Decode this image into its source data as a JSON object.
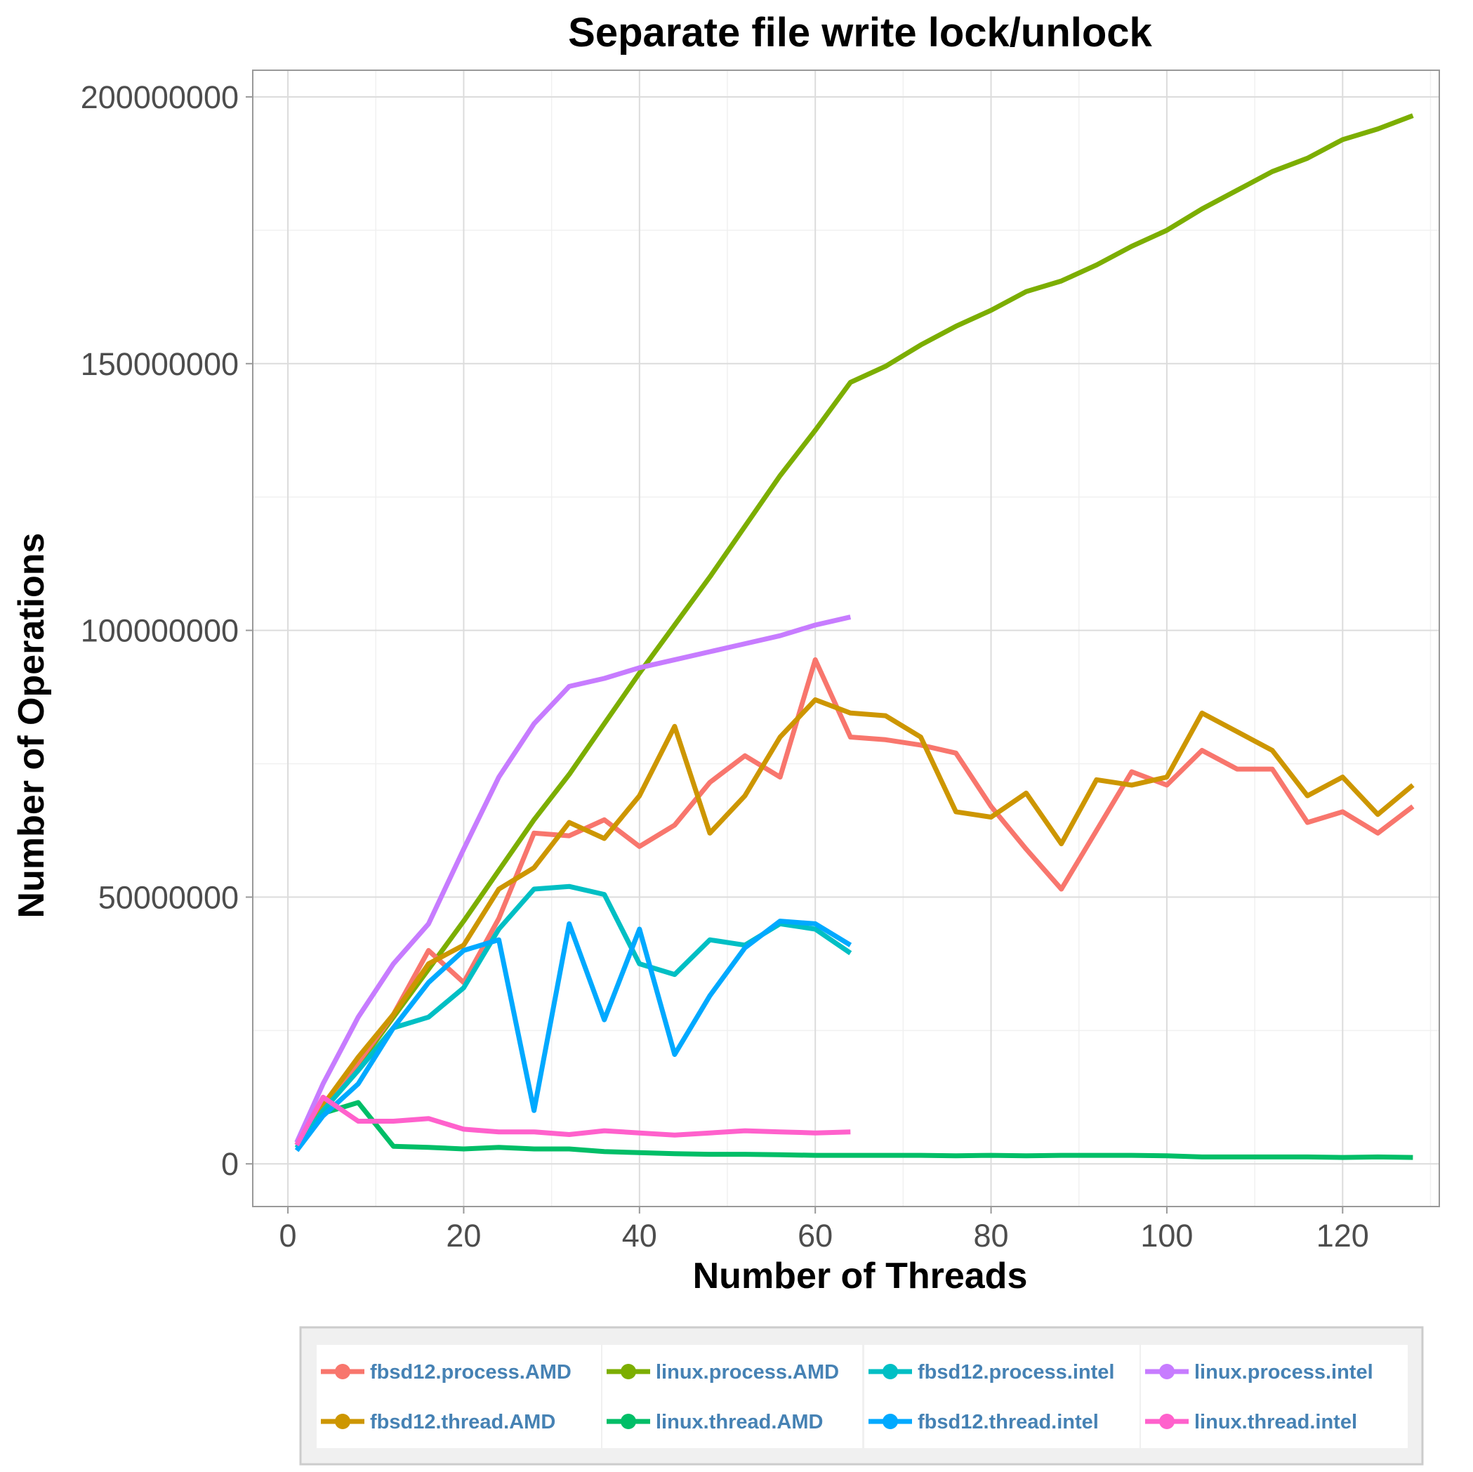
{
  "chart_data": {
    "type": "line",
    "title": "Separate file write lock/unlock",
    "xlabel": "Number of Threads",
    "ylabel": "Number of Operations",
    "xlim": [
      -4,
      131
    ],
    "ylim": [
      -8000000,
      205000000
    ],
    "x_ticks": [
      0,
      20,
      40,
      60,
      80,
      100,
      120
    ],
    "y_ticks": [
      0,
      50000000,
      100000000,
      150000000,
      200000000
    ],
    "x_tick_labels": [
      "0",
      "20",
      "40",
      "60",
      "80",
      "100",
      "120"
    ],
    "y_tick_labels": [
      "0",
      "50000000",
      "100000000",
      "150000000",
      "200000000"
    ],
    "grid": true,
    "legend_position": "bottom",
    "series": [
      {
        "name": "fbsd12.process.AMD",
        "color": "#F8766D",
        "x": [
          1,
          4,
          8,
          12,
          16,
          20,
          24,
          28,
          32,
          36,
          40,
          44,
          48,
          52,
          56,
          60,
          64,
          68,
          72,
          76,
          80,
          84,
          88,
          92,
          96,
          100,
          104,
          108,
          112,
          116,
          120,
          124,
          128
        ],
        "y": [
          3500000,
          11000000,
          19000000,
          28000000,
          40000000,
          34000000,
          46000000,
          62000000,
          61500000,
          64500000,
          59500000,
          63500000,
          71500000,
          76500000,
          72500000,
          94500000,
          80000000,
          79500000,
          78500000,
          77000000,
          67000000,
          59000000,
          51500000,
          62500000,
          73500000,
          71000000,
          77500000,
          74000000,
          74000000,
          64000000,
          66000000,
          62000000,
          67000000
        ]
      },
      {
        "name": "fbsd12.thread.AMD",
        "color": "#CD9600",
        "x": [
          1,
          4,
          8,
          12,
          16,
          20,
          24,
          28,
          32,
          36,
          40,
          44,
          48,
          52,
          56,
          60,
          64,
          68,
          72,
          76,
          80,
          84,
          88,
          92,
          96,
          100,
          104,
          108,
          112,
          116,
          120,
          124,
          128
        ],
        "y": [
          3500000,
          11000000,
          20000000,
          28000000,
          37500000,
          41000000,
          51500000,
          55500000,
          64000000,
          61000000,
          69000000,
          82000000,
          62000000,
          69000000,
          80000000,
          87000000,
          84500000,
          84000000,
          80000000,
          66000000,
          65000000,
          69500000,
          60000000,
          72000000,
          71000000,
          72500000,
          84500000,
          81000000,
          77500000,
          69000000,
          72500000,
          65500000,
          71000000
        ]
      },
      {
        "name": "linux.process.AMD",
        "color": "#7CAE00",
        "x": [
          1,
          4,
          8,
          12,
          16,
          20,
          24,
          28,
          32,
          36,
          40,
          44,
          48,
          52,
          56,
          60,
          64,
          68,
          72,
          76,
          80,
          84,
          88,
          92,
          96,
          100,
          104,
          108,
          112,
          116,
          120,
          124,
          128
        ],
        "y": [
          3500000,
          10500000,
          18500000,
          27500000,
          36500000,
          45500000,
          55000000,
          64500000,
          73000000,
          82500000,
          92000000,
          101000000,
          110000000,
          119500000,
          129000000,
          137500000,
          146500000,
          149500000,
          153500000,
          157000000,
          160000000,
          163500000,
          165500000,
          168500000,
          172000000,
          175000000,
          179000000,
          182500000,
          186000000,
          188500000,
          192000000,
          194000000,
          196500000
        ]
      },
      {
        "name": "linux.thread.AMD",
        "color": "#00BE67",
        "x": [
          1,
          4,
          8,
          12,
          16,
          20,
          24,
          28,
          32,
          36,
          40,
          44,
          48,
          52,
          56,
          60,
          64,
          68,
          72,
          76,
          80,
          84,
          88,
          92,
          96,
          100,
          104,
          108,
          112,
          116,
          120,
          124,
          128
        ],
        "y": [
          3500000,
          9500000,
          11500000,
          3300000,
          3100000,
          2800000,
          3100000,
          2800000,
          2800000,
          2300000,
          2100000,
          1900000,
          1800000,
          1800000,
          1700000,
          1600000,
          1600000,
          1600000,
          1600000,
          1500000,
          1600000,
          1500000,
          1600000,
          1600000,
          1600000,
          1500000,
          1300000,
          1300000,
          1300000,
          1300000,
          1200000,
          1300000,
          1200000
        ]
      },
      {
        "name": "fbsd12.process.intel",
        "color": "#00BFC4",
        "x": [
          1,
          4,
          8,
          12,
          16,
          20,
          24,
          28,
          32,
          36,
          40,
          44,
          48,
          52,
          56,
          60,
          64
        ],
        "y": [
          3000000,
          10000000,
          17500000,
          25500000,
          27500000,
          33000000,
          44000000,
          51500000,
          52000000,
          50500000,
          37500000,
          35500000,
          42000000,
          41000000,
          45000000,
          44000000,
          39500000
        ]
      },
      {
        "name": "fbsd12.thread.intel",
        "color": "#00A9FF",
        "x": [
          1,
          4,
          8,
          12,
          16,
          20,
          24,
          28,
          32,
          36,
          40,
          44,
          48,
          52,
          56,
          60,
          64
        ],
        "y": [
          2500000,
          9000000,
          15000000,
          25500000,
          34000000,
          40000000,
          42000000,
          10000000,
          45000000,
          27000000,
          44000000,
          20500000,
          31500000,
          40500000,
          45500000,
          45000000,
          41000000
        ]
      },
      {
        "name": "linux.process.intel",
        "color": "#C77CFF",
        "x": [
          1,
          4,
          8,
          12,
          16,
          20,
          24,
          28,
          32,
          36,
          40,
          44,
          48,
          52,
          56,
          60,
          64
        ],
        "y": [
          4000000,
          15000000,
          27500000,
          37500000,
          45000000,
          59000000,
          72500000,
          82500000,
          89500000,
          91000000,
          93000000,
          94500000,
          96000000,
          97500000,
          99000000,
          101000000,
          102500000
        ]
      },
      {
        "name": "linux.thread.intel",
        "color": "#FF61CC",
        "x": [
          1,
          4,
          8,
          12,
          16,
          20,
          24,
          28,
          32,
          36,
          40,
          44,
          48,
          52,
          56,
          60,
          64
        ],
        "y": [
          3500000,
          12500000,
          8000000,
          8000000,
          8500000,
          6500000,
          6000000,
          6000000,
          5500000,
          6200000,
          5800000,
          5400000,
          5800000,
          6200000,
          6000000,
          5800000,
          6000000
        ]
      }
    ]
  }
}
